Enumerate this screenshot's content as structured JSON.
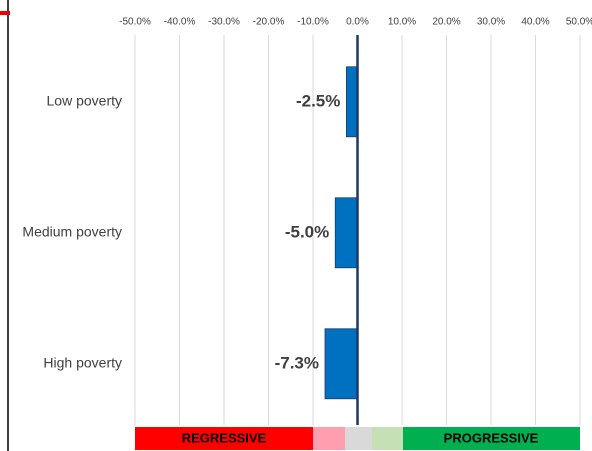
{
  "chart_data": {
    "type": "bar",
    "orientation": "horizontal",
    "categories": [
      "Low poverty",
      "Medium poverty",
      "High poverty"
    ],
    "values": [
      -2.5,
      -5.0,
      -7.3
    ],
    "value_labels": [
      "-2.5%",
      "-5.0%",
      "-7.3%"
    ],
    "color": "#0070c0",
    "xlim": [
      -50,
      50
    ],
    "xticks": [
      {
        "value": -50,
        "label": "-50.0%"
      },
      {
        "value": -40,
        "label": "-40.0%"
      },
      {
        "value": -30,
        "label": "-30.0%"
      },
      {
        "value": -20,
        "label": "-20.0%"
      },
      {
        "value": -10,
        "label": "-10.0%"
      },
      {
        "value": 0,
        "label": "0.0%"
      },
      {
        "value": 10,
        "label": "10.0%"
      },
      {
        "value": 20,
        "label": "20.0%"
      },
      {
        "value": 30,
        "label": "30.0%"
      },
      {
        "value": 40,
        "label": "40.0%"
      },
      {
        "value": 50,
        "label": "50.0%"
      }
    ],
    "grid": true,
    "annotations": [
      "REGRESSIVE",
      "PROGRESSIVE"
    ]
  }
}
